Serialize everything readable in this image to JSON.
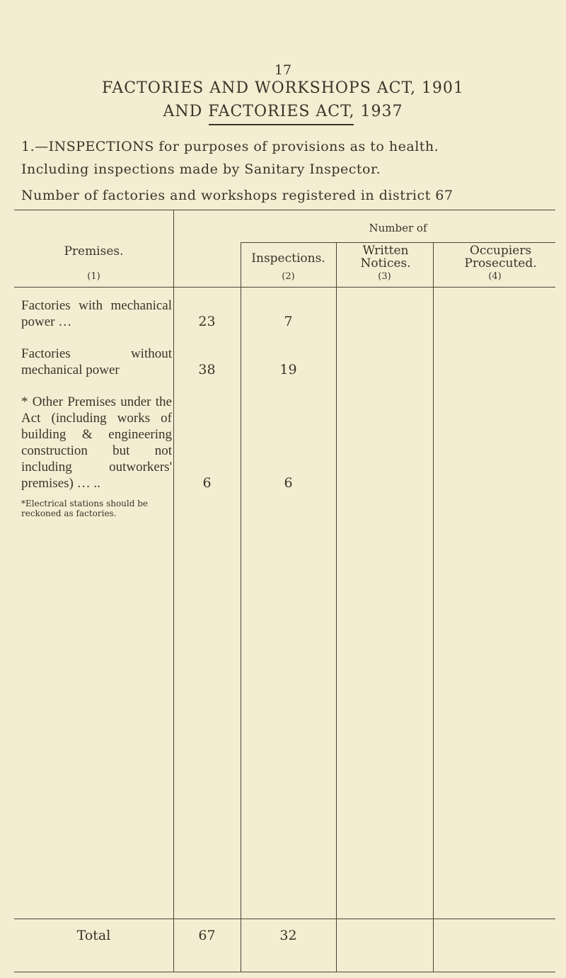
{
  "page_number": "17",
  "title_line1": "FACTORIES AND WORKSHOPS ACT, 1901",
  "title_line2": "AND FACTORIES ACT, 1937",
  "section_heading": "1.—INSPECTIONS for purposes of provisions as to health.",
  "section_subheading": "Including inspections made by Sanitary Inspector.",
  "registered_line": "Number of factories and workshops registered in district 67",
  "table": {
    "header": {
      "premises": "Premises.",
      "premises_num": "(1)",
      "number_of": "Number of",
      "inspections": "Inspections.",
      "inspections_num": "(2)",
      "written": "Written Notices.",
      "written_num": "(3)",
      "occupiers": "Occupiers Prosecuted.",
      "occupiers_num": "(4)"
    },
    "rows": [
      {
        "label": "Factories with mechanical power …",
        "registered": "23",
        "inspections": "7",
        "written": "",
        "occupiers": ""
      },
      {
        "label": "Factories without mechanical power",
        "registered": "38",
        "inspections": "19",
        "written": "",
        "occupiers": ""
      },
      {
        "label": "* Other Premises under the Act (including works of building & engineering construction but not including outworkers' premises) … ..",
        "registered": "6",
        "inspections": "6",
        "written": "",
        "occupiers": ""
      }
    ],
    "footnote": "*Electrical stations should be reckoned as factories.",
    "total": {
      "label": "Total",
      "registered": "67",
      "inspections": "32",
      "written": "",
      "occupiers": ""
    }
  }
}
